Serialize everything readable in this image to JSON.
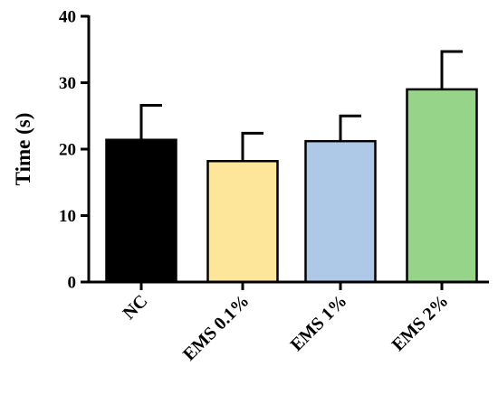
{
  "chart_data": {
    "type": "bar",
    "title": "",
    "xlabel": "",
    "ylabel": "Time (s)",
    "categories": [
      "NC",
      "EMS 0.1%",
      "EMS 1%",
      "EMS 2%"
    ],
    "values": [
      21.4,
      18.2,
      21.2,
      29.0
    ],
    "errors": [
      5.2,
      4.2,
      3.8,
      5.7
    ],
    "colors": [
      "#000000",
      "#fde59a",
      "#aec8e8",
      "#96d48a"
    ],
    "ylim": [
      0,
      40
    ],
    "yticks": [
      0,
      10,
      20,
      30,
      40
    ],
    "ytick_labels": [
      "0",
      "10",
      "20",
      "30",
      "40"
    ],
    "grid": false,
    "legend": "none"
  }
}
